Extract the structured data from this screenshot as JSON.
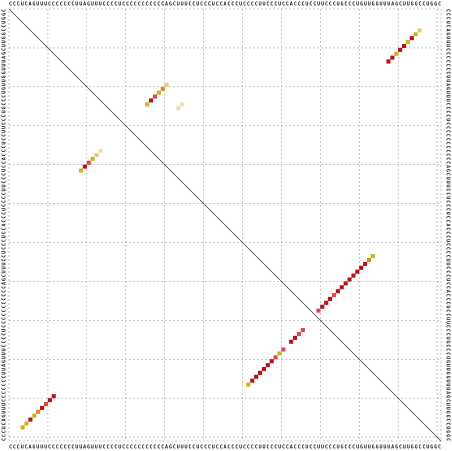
{
  "chart_data": {
    "type": "dotplot",
    "sequence": "CCCUCAGUUUCCCCCCCUUAGUUUCCCCUCCCCCCCCCCCAGCUUUCCUCCCUCCACCCUCCCCUUCCCUCCACCCUCCUUCCCUGCCCUGUUGGUUUAGCUUGGCCUGGC",
    "grid": true,
    "dots": [
      [
        3,
        107,
        "#c8b418"
      ],
      [
        4,
        106,
        "#c8b418"
      ],
      [
        5,
        105,
        "#b5121b"
      ],
      [
        6,
        104,
        "#c8b418"
      ],
      [
        7,
        103,
        "#e08a1e"
      ],
      [
        8,
        102,
        "#b5121b"
      ],
      [
        9,
        101,
        "#d9475a"
      ],
      [
        10,
        100,
        "#b5121b"
      ],
      [
        11,
        99,
        "#b5121b"
      ],
      [
        61,
        96,
        "#c8b418"
      ],
      [
        62,
        95,
        "#b5121b"
      ],
      [
        63,
        94,
        "#b5121b"
      ],
      [
        64,
        93,
        "#b5121b"
      ],
      [
        65,
        92,
        "#b5121b"
      ],
      [
        66,
        91,
        "#b5121b"
      ],
      [
        67,
        90,
        "#b5121b"
      ],
      [
        68,
        89,
        "#d9475a"
      ],
      [
        69,
        88,
        "#c8b418"
      ],
      [
        70,
        87,
        "#d9475a"
      ],
      [
        72,
        85,
        "#b5121b"
      ],
      [
        73,
        84,
        "#b5121b"
      ],
      [
        74,
        83,
        "#d9475a"
      ],
      [
        75,
        82,
        "#d9475a"
      ],
      [
        79,
        77,
        "#d9475a"
      ],
      [
        80,
        76,
        "#b5121b"
      ],
      [
        81,
        75,
        "#b5121b"
      ],
      [
        82,
        74,
        "#b5121b"
      ],
      [
        83,
        73,
        "#d9475a"
      ],
      [
        84,
        72,
        "#b5121b"
      ],
      [
        85,
        71,
        "#b5121b"
      ],
      [
        86,
        70,
        "#b5121b"
      ],
      [
        87,
        69,
        "#b5121b"
      ],
      [
        88,
        68,
        "#b5121b"
      ],
      [
        89,
        67,
        "#b5121b"
      ],
      [
        90,
        66,
        "#b5121b"
      ],
      [
        91,
        65,
        "#b5121b"
      ],
      [
        92,
        64,
        "#e08a1e"
      ],
      [
        93,
        63,
        "#c8b418"
      ],
      [
        97,
        13,
        "#b5121b"
      ],
      [
        98,
        12,
        "#b5121b"
      ],
      [
        99,
        11,
        "#c8b418"
      ],
      [
        100,
        10,
        "#b5121b"
      ],
      [
        101,
        9,
        "#b5121b"
      ],
      [
        102,
        8,
        "#c8b418"
      ],
      [
        103,
        7,
        "#b5121b"
      ],
      [
        104,
        6,
        "#c8b418"
      ],
      [
        105,
        5,
        "#e0d070"
      ],
      [
        35,
        24,
        "#c8b418"
      ],
      [
        36,
        23,
        "#b5121b"
      ],
      [
        37,
        22,
        "#d9475a"
      ],
      [
        38,
        21,
        "#c8b418"
      ],
      [
        39,
        20,
        "#e08a1e"
      ],
      [
        40,
        19,
        "#e0d070"
      ],
      [
        43,
        25,
        "#e8e0b0"
      ],
      [
        44,
        24,
        "#e8e0b0"
      ],
      [
        18,
        41,
        "#c8b418"
      ],
      [
        19,
        40,
        "#b5121b"
      ],
      [
        20,
        39,
        "#d9475a"
      ],
      [
        21,
        38,
        "#c8b418"
      ],
      [
        22,
        37,
        "#e0d070"
      ],
      [
        23,
        36,
        "#e8e0b0"
      ]
    ]
  }
}
